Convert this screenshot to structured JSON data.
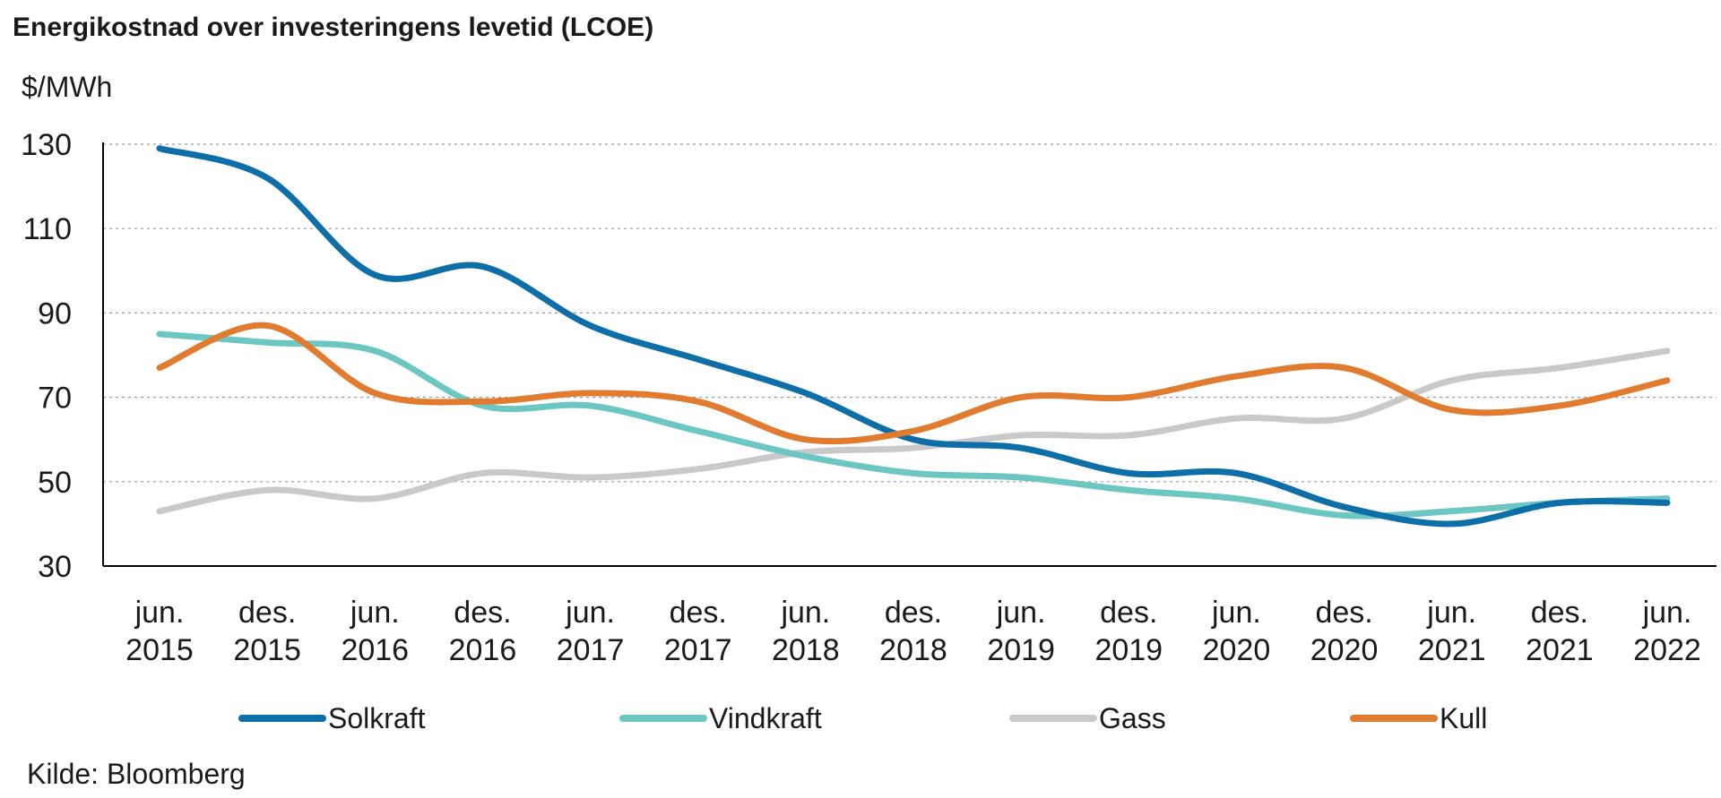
{
  "title": "Energikostnad over investeringens levetid (LCOE)",
  "source": "Kilde: Bloomberg",
  "chart_data": {
    "type": "line",
    "title": "Energikostnad over investeringens levetid (LCOE)",
    "unit_label": "$/MWh",
    "ylim": [
      30,
      130
    ],
    "yticks": [
      30,
      50,
      70,
      90,
      110,
      130
    ],
    "grid": true,
    "legend_position": "bottom",
    "categories": [
      [
        "jun.",
        "2015"
      ],
      [
        "des.",
        "2015"
      ],
      [
        "jun.",
        "2016"
      ],
      [
        "des.",
        "2016"
      ],
      [
        "jun.",
        "2017"
      ],
      [
        "des.",
        "2017"
      ],
      [
        "jun.",
        "2018"
      ],
      [
        "des.",
        "2018"
      ],
      [
        "jun.",
        "2019"
      ],
      [
        "des.",
        "2019"
      ],
      [
        "jun.",
        "2020"
      ],
      [
        "des.",
        "2020"
      ],
      [
        "jun.",
        "2021"
      ],
      [
        "des.",
        "2021"
      ],
      [
        "jun.",
        "2022"
      ]
    ],
    "series": [
      {
        "name": "Solkraft",
        "color": "#0e6ea8",
        "values": [
          129,
          122,
          99,
          101,
          87,
          79,
          71,
          60,
          58,
          52,
          52,
          44,
          40,
          45,
          45
        ]
      },
      {
        "name": "Vindkraft",
        "color": "#6cc6c1",
        "values": [
          85,
          83,
          81,
          68,
          68,
          62,
          56,
          52,
          51,
          48,
          46,
          42,
          43,
          45,
          46
        ]
      },
      {
        "name": "Gass",
        "color": "#c9c9c9",
        "values": [
          43,
          48,
          46,
          52,
          51,
          53,
          57,
          58,
          61,
          61,
          65,
          65,
          74,
          77,
          81
        ]
      },
      {
        "name": "Kull",
        "color": "#e07b2f",
        "values": [
          77,
          87,
          71,
          69,
          71,
          69,
          60,
          62,
          70,
          70,
          75,
          77,
          67,
          68,
          74
        ]
      }
    ]
  }
}
